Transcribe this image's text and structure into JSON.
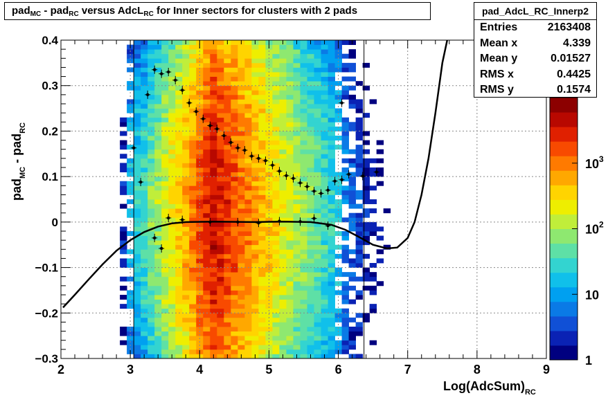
{
  "title": {
    "parts": [
      {
        "t": "pad"
      },
      {
        "t": "MC",
        "sub": true
      },
      {
        "t": " - pad"
      },
      {
        "t": "RC",
        "sub": true
      },
      {
        "t": " versus AdcL"
      },
      {
        "t": "RC",
        "sub": true
      },
      {
        "t": " for Inner sectors for clusters with 2 pads"
      }
    ]
  },
  "stats": {
    "name": "pad_AdcL_RC_Innerp2",
    "rows": [
      {
        "label": "Entries",
        "value": "2163408"
      },
      {
        "label": "Mean x",
        "value": "4.339"
      },
      {
        "label": "Mean y",
        "value": "0.01527"
      },
      {
        "label": "RMS x",
        "value": "0.4425"
      },
      {
        "label": "RMS y",
        "value": "0.1574"
      }
    ]
  },
  "chart_data": {
    "type": "heatmap",
    "xlabel": {
      "main": "Log(AdcSum)",
      "sub": "RC"
    },
    "ylabel": {
      "parts": [
        {
          "t": "pad"
        },
        {
          "t": "MC",
          "sub": true
        },
        {
          "t": " - pad"
        },
        {
          "t": "RC",
          "sub": true
        }
      ]
    },
    "xlim": [
      2,
      9
    ],
    "ylim": [
      -0.3,
      0.4
    ],
    "x_ticks": [
      2,
      3,
      4,
      5,
      6,
      7,
      8,
      9
    ],
    "x_tick_labels": [
      "2",
      "3",
      "4",
      "5",
      "6",
      "7",
      "8",
      "9"
    ],
    "y_ticks": [
      -0.3,
      -0.2,
      -0.1,
      0,
      0.1,
      0.2,
      0.3,
      0.4
    ],
    "y_tick_labels": [
      "−0.3",
      "−0.2",
      "−0.1",
      "0",
      "0.1",
      "0.2",
      "0.3",
      "0.4"
    ],
    "grid": true,
    "z_scale": "log",
    "z_range": [
      1,
      10000
    ],
    "z_tick_labels": [
      {
        "base": "1",
        "exp": "",
        "value": 1
      },
      {
        "base": "10",
        "exp": "",
        "value": 10
      },
      {
        "base": "10",
        "exp": "2",
        "value": 100
      },
      {
        "base": "10",
        "exp": "3",
        "value": 1000
      }
    ],
    "palette": [
      "#000080",
      "#0a22b4",
      "#1050d6",
      "#0a7ae6",
      "#00a0f0",
      "#10c0ea",
      "#33d4d0",
      "#5ee0a6",
      "#8ee870",
      "#c0ee3a",
      "#eeee00",
      "#ffd400",
      "#ffa800",
      "#ff7a00",
      "#f84a00",
      "#e02000",
      "#b80800",
      "#8c0000"
    ],
    "vertical_lines_x": [
      3.05,
      6.37
    ],
    "density": {
      "description_fields": "x_range_of_dense_band",
      "x_min": 3.0,
      "x_max": 6.0,
      "peak_x": 4.2,
      "peak_log10_count": 3.6
    },
    "profile_upper": [
      {
        "x": 3.05,
        "y": 0.163
      },
      {
        "x": 3.15,
        "y": 0.088
      },
      {
        "x": 3.25,
        "y": 0.28
      },
      {
        "x": 3.35,
        "y": 0.335
      },
      {
        "x": 3.45,
        "y": 0.326
      },
      {
        "x": 3.55,
        "y": 0.33
      },
      {
        "x": 3.65,
        "y": 0.312
      },
      {
        "x": 3.75,
        "y": 0.29
      },
      {
        "x": 3.85,
        "y": 0.262
      },
      {
        "x": 3.95,
        "y": 0.243
      },
      {
        "x": 4.05,
        "y": 0.227
      },
      {
        "x": 4.15,
        "y": 0.212
      },
      {
        "x": 4.25,
        "y": 0.205
      },
      {
        "x": 4.35,
        "y": 0.19
      },
      {
        "x": 4.45,
        "y": 0.175
      },
      {
        "x": 4.55,
        "y": 0.163
      },
      {
        "x": 4.65,
        "y": 0.158
      },
      {
        "x": 4.75,
        "y": 0.145
      },
      {
        "x": 4.85,
        "y": 0.14
      },
      {
        "x": 4.95,
        "y": 0.135
      },
      {
        "x": 5.05,
        "y": 0.125
      },
      {
        "x": 5.15,
        "y": 0.112
      },
      {
        "x": 5.25,
        "y": 0.102
      },
      {
        "x": 5.35,
        "y": 0.096
      },
      {
        "x": 5.45,
        "y": 0.086
      },
      {
        "x": 5.55,
        "y": 0.078
      },
      {
        "x": 5.65,
        "y": 0.068
      },
      {
        "x": 5.75,
        "y": 0.063
      },
      {
        "x": 5.85,
        "y": 0.07
      },
      {
        "x": 5.95,
        "y": 0.09
      },
      {
        "x": 6.05,
        "y": 0.262
      },
      {
        "x": 6.15,
        "y": 0.105
      },
      {
        "x": 6.35,
        "y": 0.101
      },
      {
        "x": 6.55,
        "y": 0.11
      }
    ],
    "profile_lower": [
      {
        "x": 3.35,
        "y": -0.035
      },
      {
        "x": 3.45,
        "y": -0.058
      },
      {
        "x": 3.55,
        "y": 0.009
      },
      {
        "x": 3.75,
        "y": 0.005
      },
      {
        "x": 4.15,
        "y": 0.0
      },
      {
        "x": 4.55,
        "y": 0.0
      },
      {
        "x": 4.85,
        "y": -0.002
      },
      {
        "x": 5.15,
        "y": 0.002
      },
      {
        "x": 5.45,
        "y": 0.001
      },
      {
        "x": 5.65,
        "y": 0.008
      },
      {
        "x": 5.85,
        "y": -0.008
      },
      {
        "x": 6.05,
        "y": 0.093
      }
    ],
    "fit_curve": [
      {
        "x": 2.03,
        "y": -0.188
      },
      {
        "x": 2.2,
        "y": -0.16
      },
      {
        "x": 2.4,
        "y": -0.126
      },
      {
        "x": 2.6,
        "y": -0.093
      },
      {
        "x": 2.8,
        "y": -0.063
      },
      {
        "x": 3.0,
        "y": -0.04
      },
      {
        "x": 3.2,
        "y": -0.022
      },
      {
        "x": 3.4,
        "y": -0.01
      },
      {
        "x": 3.6,
        "y": -0.003
      },
      {
        "x": 3.8,
        "y": 0.0
      },
      {
        "x": 4.2,
        "y": 0.001
      },
      {
        "x": 4.8,
        "y": 0.0
      },
      {
        "x": 5.2,
        "y": 0.001
      },
      {
        "x": 5.6,
        "y": 0.0
      },
      {
        "x": 5.9,
        "y": -0.006
      },
      {
        "x": 6.1,
        "y": -0.017
      },
      {
        "x": 6.3,
        "y": -0.033
      },
      {
        "x": 6.5,
        "y": -0.05
      },
      {
        "x": 6.7,
        "y": -0.058
      },
      {
        "x": 6.85,
        "y": -0.056
      },
      {
        "x": 7.0,
        "y": -0.035
      },
      {
        "x": 7.1,
        "y": 0.0
      },
      {
        "x": 7.2,
        "y": 0.06
      },
      {
        "x": 7.3,
        "y": 0.14
      },
      {
        "x": 7.4,
        "y": 0.24
      },
      {
        "x": 7.5,
        "y": 0.35
      },
      {
        "x": 7.57,
        "y": 0.4
      }
    ]
  }
}
